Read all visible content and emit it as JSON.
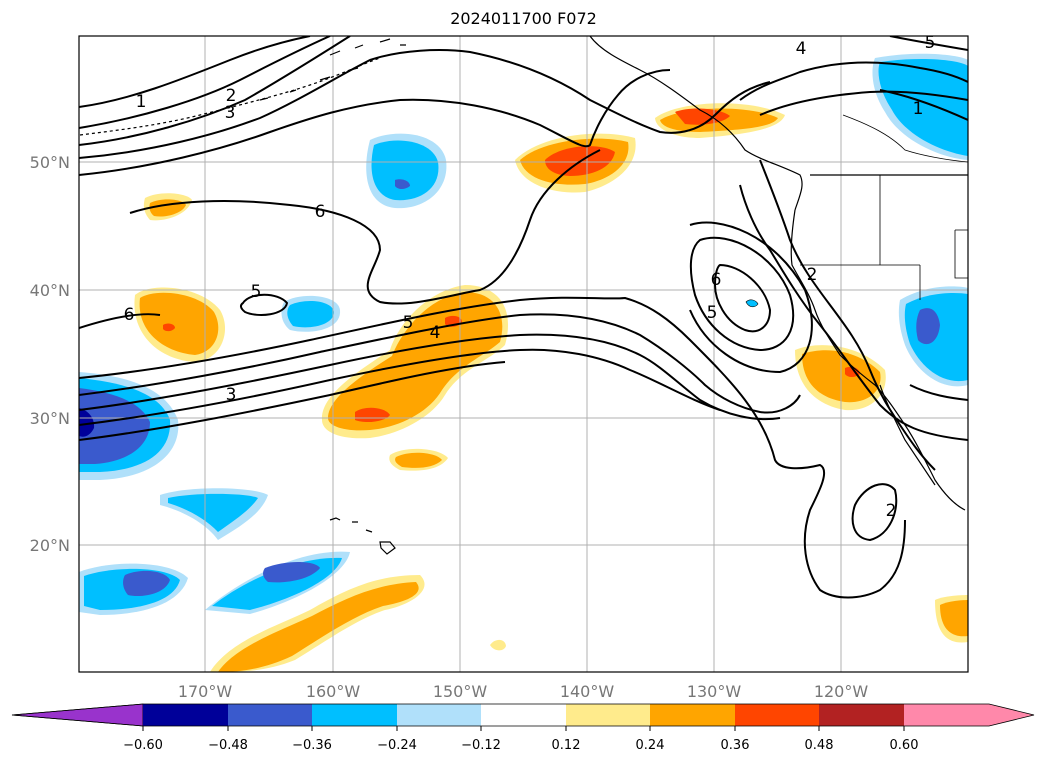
{
  "title": "2024011700 F072",
  "lat_labels": [
    "50°N",
    "40°N",
    "30°N",
    "20°N"
  ],
  "lon_labels": [
    "170°W",
    "160°W",
    "150°W",
    "140°W",
    "130°W",
    "120°W"
  ],
  "contour_labels": [
    "1",
    "2",
    "3",
    "6",
    "5",
    "6",
    "3",
    "5",
    "4",
    "6",
    "5",
    "2",
    "4",
    "5",
    "1",
    "2"
  ],
  "colorbar": {
    "ticks": [
      "−0.60",
      "−0.48",
      "−0.36",
      "−0.24",
      "−0.12",
      "0.12",
      "0.24",
      "0.36",
      "0.48",
      "0.60"
    ],
    "colors": {
      "under": "#9933cc",
      "bins": [
        "#000099",
        "#3a5acd",
        "#00bfff",
        "#b0e0fa",
        "#ffffff",
        "#ffeb8c",
        "#ffa500",
        "#ff4500",
        "#b22222"
      ],
      "over": "#ff88aa"
    }
  }
}
